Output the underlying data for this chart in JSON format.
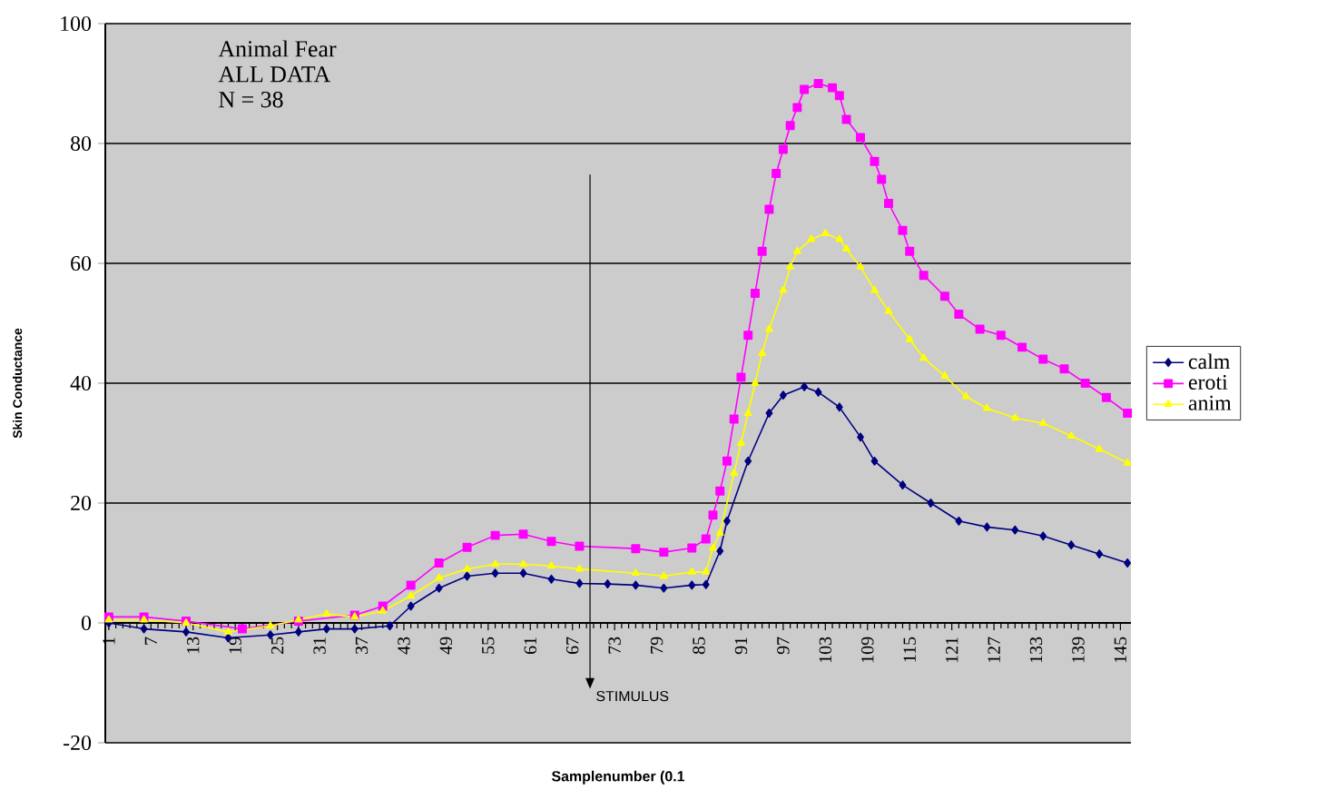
{
  "chart_data": {
    "type": "line",
    "xlabel": "Samplenumber    (0.1",
    "ylabel": "Skin Conductance",
    "annotations": [
      "Animal Fear",
      "ALL DATA",
      "N = 38"
    ],
    "ref_lines": [
      {
        "axis": "x",
        "value": 69.5,
        "label": "STIMULUS"
      }
    ],
    "xlim": [
      0.5,
      146.5
    ],
    "xticks": [
      1,
      7,
      13,
      19,
      25,
      31,
      37,
      43,
      49,
      55,
      61,
      67,
      73,
      79,
      85,
      91,
      97,
      103,
      109,
      115,
      121,
      127,
      133,
      139,
      145
    ],
    "ylim": [
      -20,
      100
    ],
    "yticks": [
      -20,
      0,
      20,
      40,
      60,
      80,
      100
    ],
    "grid": "y",
    "legend": "right",
    "series": [
      {
        "name": "calm",
        "color": "#000080",
        "marker": "diamond",
        "x": [
          1,
          6,
          12,
          18,
          24,
          28,
          32,
          36,
          41,
          44,
          48,
          52,
          56,
          60,
          64,
          68,
          72,
          76,
          80,
          84,
          86,
          88,
          89,
          92,
          95,
          97,
          100,
          102,
          105,
          108,
          110,
          114,
          118,
          122,
          126,
          130,
          134,
          138,
          142,
          146
        ],
        "values": [
          0,
          -1,
          -1.5,
          -2.5,
          -2,
          -1.5,
          -1,
          -1,
          -0.5,
          2.8,
          5.8,
          7.8,
          8.3,
          8.3,
          7.3,
          6.6,
          6.5,
          6.3,
          5.8,
          6.3,
          6.4,
          12,
          17,
          27,
          35,
          38,
          39.4,
          38.5,
          36,
          31,
          27,
          23,
          20,
          17,
          16,
          15.5,
          14.5,
          13,
          11.5,
          10
        ]
      },
      {
        "name": "eroti",
        "color": "#ff00ff",
        "marker": "square",
        "x": [
          1,
          6,
          12,
          20,
          28,
          36,
          40,
          44,
          48,
          52,
          56,
          60,
          64,
          68,
          76,
          80,
          84,
          86,
          87,
          88,
          89,
          90,
          91,
          92,
          93,
          94,
          95,
          96,
          97,
          98,
          99,
          100,
          102,
          104,
          105,
          106,
          108,
          110,
          111,
          112,
          114,
          115,
          117,
          120,
          122,
          125,
          128,
          131,
          134,
          137,
          140,
          143,
          146
        ],
        "values": [
          1,
          1,
          0.3,
          -1,
          0.3,
          1.3,
          2.8,
          6.3,
          10,
          12.6,
          14.6,
          14.8,
          13.6,
          12.8,
          12.4,
          11.8,
          12.5,
          14,
          18,
          22,
          27,
          34,
          41,
          48,
          55,
          62,
          69,
          75,
          79,
          83,
          86,
          89,
          90,
          89.3,
          88,
          84,
          81,
          77,
          74,
          70,
          65.5,
          62,
          58,
          54.5,
          51.5,
          49,
          48,
          46,
          44,
          42.4,
          40,
          37.6,
          35
        ]
      },
      {
        "name": "anim",
        "color": "#ffff00",
        "marker": "triangle",
        "x": [
          1,
          6,
          12,
          18,
          24,
          28,
          32,
          36,
          40,
          44,
          48,
          52,
          56,
          60,
          64,
          68,
          76,
          80,
          84,
          86,
          87,
          88,
          90,
          91,
          92,
          93,
          94,
          95,
          97,
          98,
          99,
          101,
          103,
          105,
          106,
          108,
          110,
          112,
          115,
          117,
          120,
          123,
          126,
          130,
          134,
          138,
          142,
          146
        ],
        "values": [
          0.5,
          0.5,
          0,
          -1.5,
          -0.5,
          0.5,
          1.5,
          1,
          2,
          4.5,
          7.5,
          9,
          9.8,
          9.8,
          9.5,
          9,
          8.3,
          7.8,
          8.5,
          8.5,
          12.5,
          15,
          25,
          30,
          35,
          40,
          45,
          49,
          55.5,
          59.4,
          62,
          64,
          65,
          64,
          62.4,
          59.4,
          55.5,
          52,
          47.3,
          44.2,
          41.2,
          37.8,
          35.8,
          34.2,
          33.3,
          31.2,
          29,
          26.7
        ]
      }
    ]
  }
}
